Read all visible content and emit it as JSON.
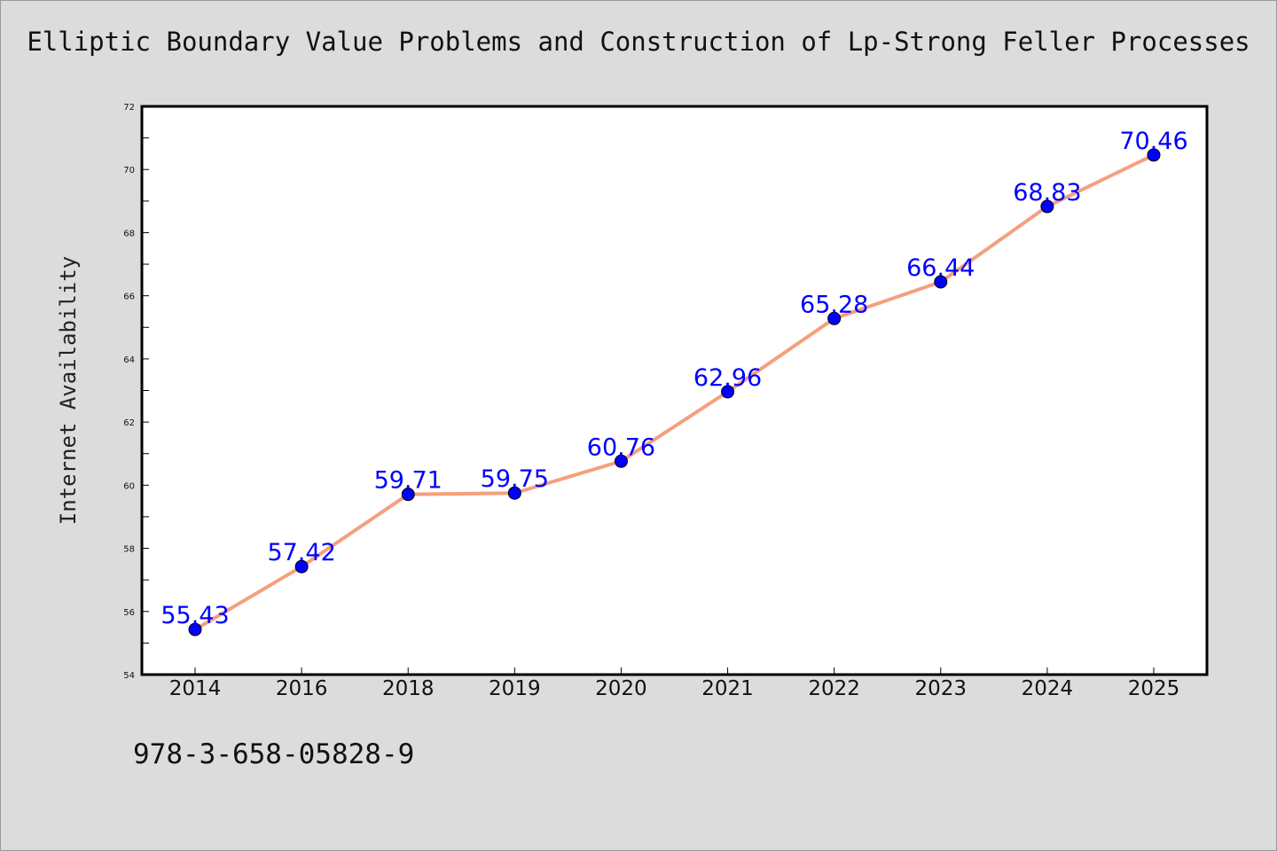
{
  "colors": {
    "background": "#dcdcdc",
    "plot_background": "#ffffff",
    "line": "#f4a07e",
    "marker": "#0000ff",
    "data_label": "#0000ff"
  },
  "isbn": "978-3-658-05828-9",
  "chart_data": {
    "type": "line",
    "title": "Elliptic Boundary Value Problems and Construction of Lp-Strong Feller Processes",
    "xlabel": "",
    "ylabel": "Internet Availability",
    "categories": [
      "2014",
      "2016",
      "2018",
      "2019",
      "2020",
      "2021",
      "2022",
      "2023",
      "2024",
      "2025"
    ],
    "series": [
      {
        "values": [
          55.43,
          57.42,
          59.71,
          59.75,
          60.76,
          62.96,
          65.28,
          66.44,
          68.83,
          70.46
        ],
        "labels": [
          "55.43",
          "57.42",
          "59.71",
          "59.75",
          "60.76",
          "62.96",
          "65.28",
          "66.44",
          "68.83",
          "70.46"
        ]
      }
    ],
    "ylim": [
      54,
      72
    ],
    "yticks": [
      54,
      56,
      58,
      60,
      62,
      64,
      66,
      68,
      70,
      72
    ],
    "ytick_labels": [
      "54",
      "56",
      "58",
      "60",
      "62",
      "64",
      "66",
      "68",
      "70",
      "72"
    ],
    "grid": false,
    "legend": "none"
  }
}
